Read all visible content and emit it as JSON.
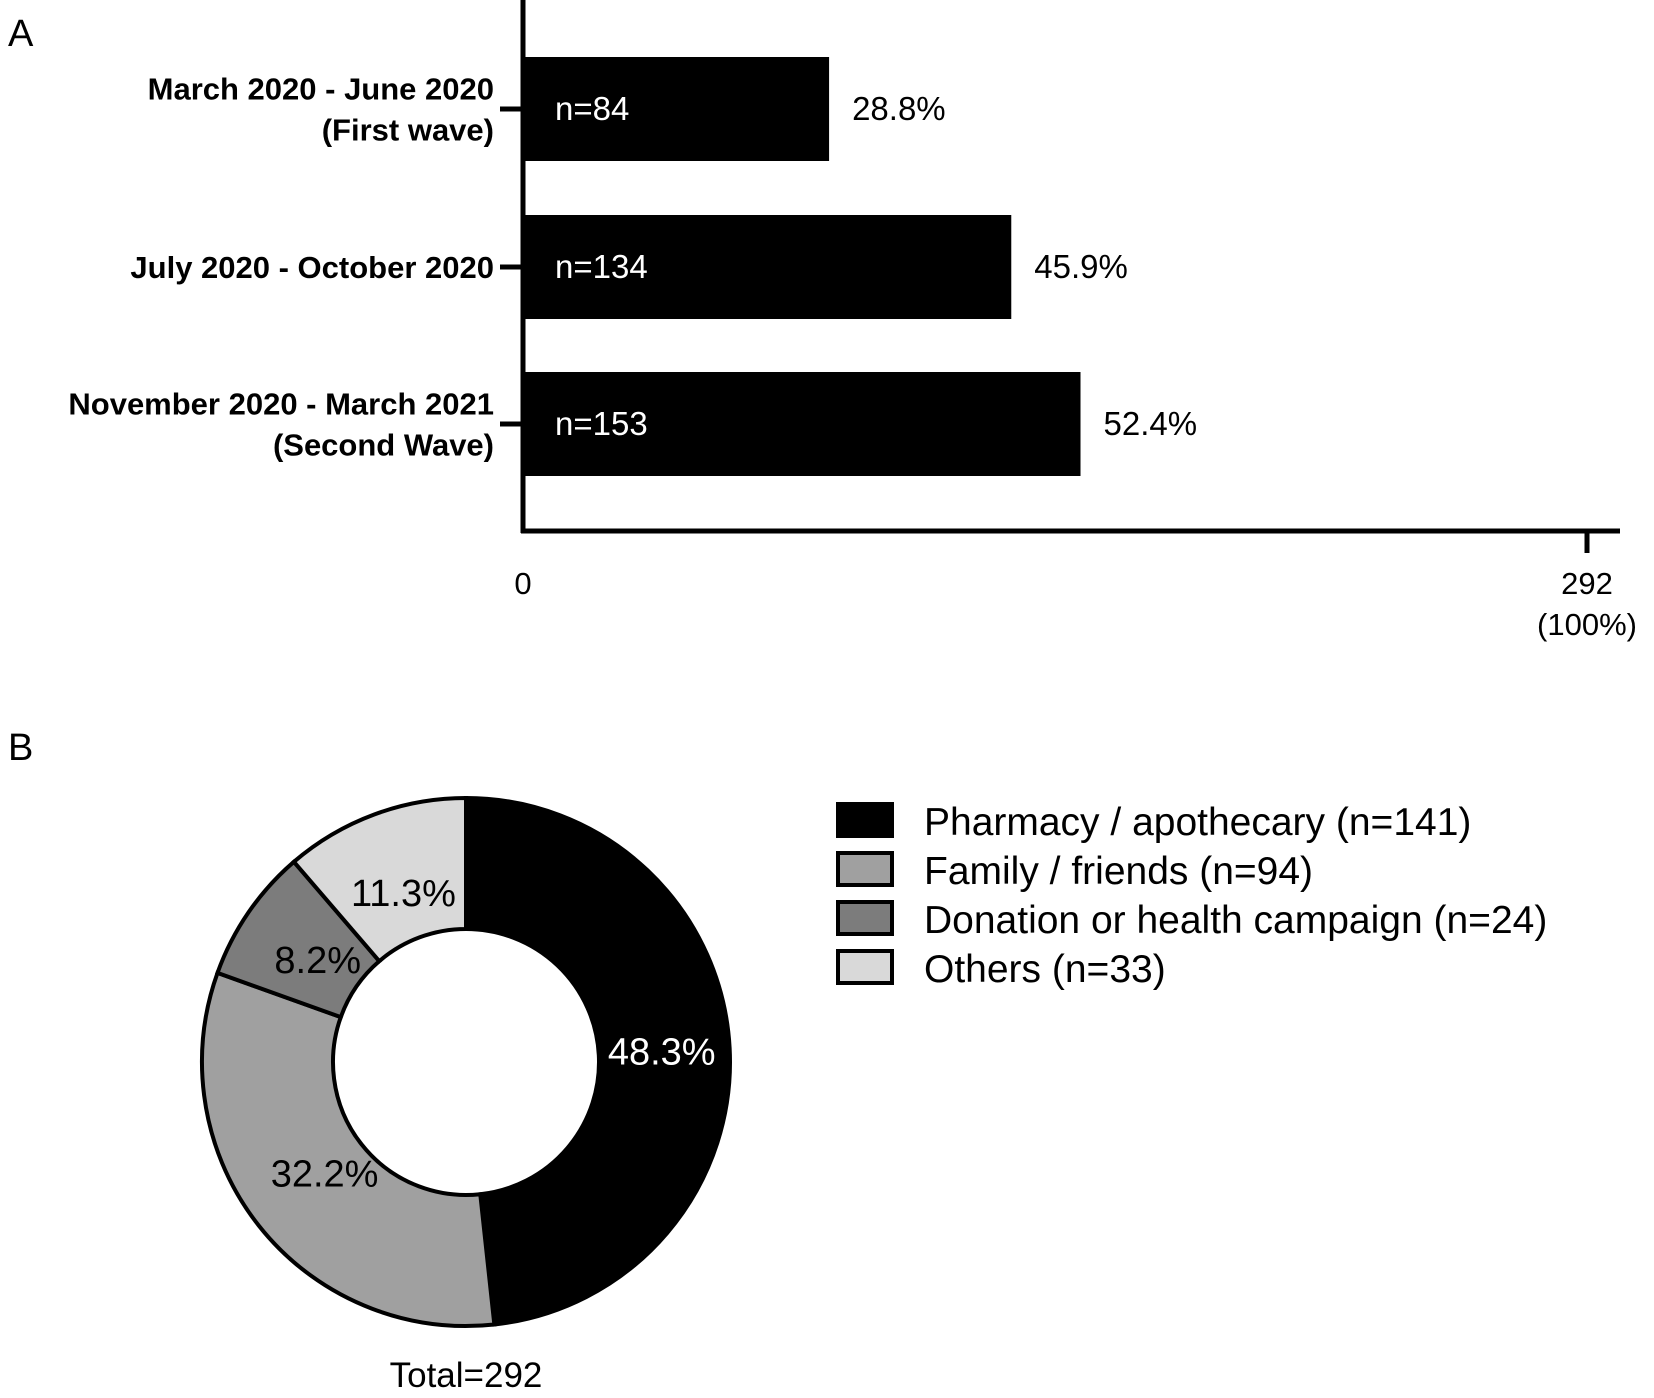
{
  "chart_data": [
    {
      "type": "bar",
      "orientation": "horizontal",
      "panel": "A",
      "categories": [
        [
          "March 2020 - June 2020",
          "(First wave)"
        ],
        [
          "July 2020 - October 2020"
        ],
        [
          "November 2020 - March 2021",
          "(Second Wave)"
        ]
      ],
      "values": [
        84,
        134,
        153
      ],
      "n_labels": [
        "n=84",
        "n=134",
        "n=153"
      ],
      "percent_labels": [
        "28.8%",
        "45.9%",
        "52.4%"
      ],
      "xlim": [
        0,
        292
      ],
      "xticks": [
        {
          "value": 0,
          "label": [
            "0"
          ]
        },
        {
          "value": 292,
          "label": [
            "292",
            "(100%)"
          ]
        }
      ],
      "bar_color": "#000000",
      "grid": false
    },
    {
      "type": "pie",
      "style": "donut",
      "panel": "B",
      "slices": [
        {
          "name": "Pharmacy / apothecary (n=141)",
          "value": 141,
          "percent_label": "48.3%",
          "color": "#000000",
          "label_color": "#ffffff"
        },
        {
          "name": "Family / friends (n=94)",
          "value": 94,
          "percent_label": "32.2%",
          "color": "#a0a0a0",
          "label_color": "#000000"
        },
        {
          "name": "Donation or health campaign (n=24)",
          "value": 24,
          "percent_label": "8.2%",
          "color": "#7c7c7c",
          "label_color": "#000000"
        },
        {
          "name": "Others (n=33)",
          "value": 33,
          "percent_label": "11.3%",
          "color": "#d9d9d9",
          "label_color": "#000000"
        }
      ],
      "total_label": "Total=292",
      "legend_position": "right"
    }
  ]
}
